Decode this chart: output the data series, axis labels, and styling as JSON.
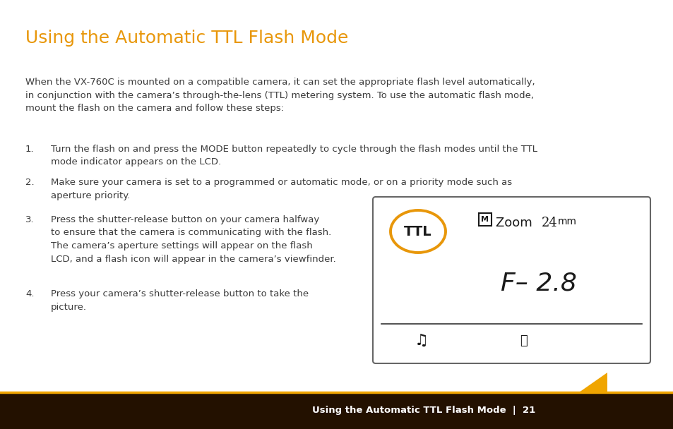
{
  "title": "Using the Automatic TTL Flash Mode",
  "title_color": "#E8970A",
  "title_fontsize": 18,
  "body_color": "#3a3a3a",
  "body_fontsize": 9.5,
  "bg_color": "#ffffff",
  "footer_bg_color": "#231100",
  "footer_text": "Using the Automatic TTL Flash Mode",
  "footer_page": "21",
  "footer_text_color": "#ffffff",
  "footer_accent_color": "#F0A500",
  "paragraph": "When the VX-760C is mounted on a compatible camera, it can set the appropriate flash level automatically,\nin conjunction with the camera’s through-the-lens (TTL) metering system. To use the automatic flash mode,\nmount the flash on the camera and follow these steps:",
  "steps": [
    "Turn the flash on and press the MODE button repeatedly to cycle through the flash modes until the TTL\nmode indicator appears on the LCD.",
    "Make sure your camera is set to a programmed or automatic mode, or on a priority mode such as\naperture priority.",
    "Press the shutter-release button on your camera halfway\nto ensure that the camera is communicating with the flash.\nThe camera’s aperture settings will appear on the flash\nLCD, and a flash icon will appear in the camera’s viewfinder.",
    "Press your camera’s shutter-release button to take the\npicture."
  ]
}
